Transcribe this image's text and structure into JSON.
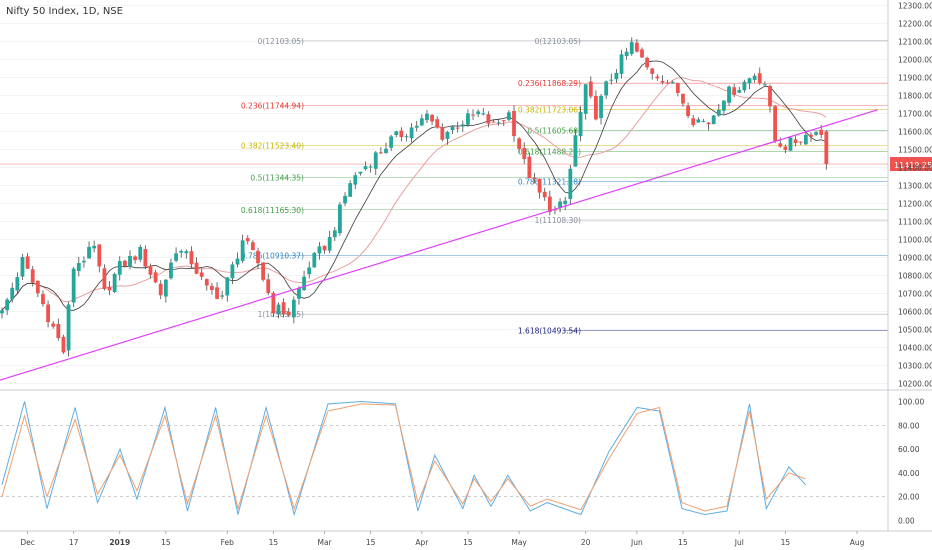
{
  "header": {
    "symbol": "Nifty 50 Index, 1D, NSE"
  },
  "chart_data": [
    {
      "type": "candlestick",
      "title": "Nifty 50 Index, 1D, NSE",
      "ylim": [
        10170,
        12330
      ],
      "y_ticks": [
        10200,
        10300,
        10400,
        10500,
        10600,
        10700,
        10800,
        10900,
        11000,
        11100,
        11200,
        11300,
        11400,
        11500,
        11600,
        11700,
        11800,
        11900,
        12000,
        12100,
        12200,
        12300
      ],
      "y_tick_labels": [
        "10200.00",
        "10300.00",
        "10400.00",
        "10500.00",
        "10600.00",
        "10700.00",
        "10800.00",
        "10900.00",
        "11000.00",
        "11100.00",
        "11200.00",
        "11300.00",
        "11400.00",
        "11500.00",
        "11600.00",
        "11700.00",
        "11800.00",
        "11900.00",
        "12000.00",
        "12100.00",
        "12200.00",
        "12300.00"
      ],
      "x_ticks": [
        {
          "label": "Dec",
          "i": 5
        },
        {
          "label": "17",
          "i": 14
        },
        {
          "label": "2019",
          "i": 23
        },
        {
          "label": "15",
          "i": 32
        },
        {
          "label": "Feb",
          "i": 44
        },
        {
          "label": "15",
          "i": 53
        },
        {
          "label": "Mar",
          "i": 63
        },
        {
          "label": "15",
          "i": 72
        },
        {
          "label": "Apr",
          "i": 82
        },
        {
          "label": "15",
          "i": 91
        },
        {
          "label": "May",
          "i": 101
        },
        {
          "label": "20",
          "i": 114
        },
        {
          "label": "Jun",
          "i": 124
        },
        {
          "label": "15",
          "i": 133
        },
        {
          "label": "Jul",
          "i": 144
        },
        {
          "label": "15",
          "i": 153
        },
        {
          "label": "Aug",
          "i": 167
        }
      ],
      "last_price_label": "11419.25",
      "last_price": 11419.25,
      "price_series": {
        "anchors": [
          [
            0,
            10590
          ],
          [
            4,
            10880
          ],
          [
            8,
            10640
          ],
          [
            12,
            10380
          ],
          [
            14,
            10850
          ],
          [
            18,
            10950
          ],
          [
            20,
            10700
          ],
          [
            23,
            10850
          ],
          [
            27,
            10930
          ],
          [
            31,
            10700
          ],
          [
            34,
            10950
          ],
          [
            37,
            10880
          ],
          [
            40,
            10720
          ],
          [
            43,
            10690
          ],
          [
            47,
            11000
          ],
          [
            50,
            10870
          ],
          [
            53,
            10620
          ],
          [
            56,
            10590
          ],
          [
            60,
            10860
          ],
          [
            64,
            11000
          ],
          [
            68,
            11320
          ],
          [
            72,
            11440
          ],
          [
            76,
            11550
          ],
          [
            80,
            11620
          ],
          [
            83,
            11680
          ],
          [
            86,
            11580
          ],
          [
            89,
            11640
          ],
          [
            93,
            11700
          ],
          [
            96,
            11630
          ],
          [
            99,
            11700
          ],
          [
            102,
            11420
          ],
          [
            105,
            11250
          ],
          [
            108,
            11150
          ],
          [
            110,
            11210
          ],
          [
            112,
            11570
          ],
          [
            114,
            11830
          ],
          [
            116,
            11700
          ],
          [
            118,
            11850
          ],
          [
            120,
            11950
          ],
          [
            123,
            12080
          ],
          [
            126,
            11950
          ],
          [
            129,
            11900
          ],
          [
            132,
            11820
          ],
          [
            135,
            11670
          ],
          [
            138,
            11650
          ],
          [
            141,
            11800
          ],
          [
            144,
            11850
          ],
          [
            147,
            11920
          ],
          [
            149,
            11870
          ],
          [
            151,
            11550
          ],
          [
            153,
            11520
          ],
          [
            156,
            11560
          ],
          [
            158,
            11600
          ],
          [
            160,
            11590
          ],
          [
            161,
            11419
          ]
        ]
      },
      "fib_left": [
        {
          "label": "0(12103.05)",
          "value": 12103.05,
          "color": "#8a8f99"
        },
        {
          "label": "0.236(11744.94)",
          "value": 11744.94,
          "color": "#e53935"
        },
        {
          "label": "0.382(11523.40)",
          "value": 11523.4,
          "color": "#c7b500"
        },
        {
          "label": "0.5(11344.35)",
          "value": 11344.35,
          "color": "#43a047"
        },
        {
          "label": "0.618(11165.30)",
          "value": 11165.3,
          "color": "#43a047"
        },
        {
          "label": "0.786(10910.37)",
          "value": 10910.37,
          "color": "#2e86c1"
        },
        {
          "label": "1(10585.65)",
          "value": 10585.65,
          "color": "#8a8f99"
        }
      ],
      "fib_right": [
        {
          "label": "0(12103.05)",
          "value": 12103.05,
          "color": "#8a8f99"
        },
        {
          "label": "0.236(11868.29)",
          "value": 11868.29,
          "color": "#e53935"
        },
        {
          "label": "0.382(11723.06)",
          "value": 11723.06,
          "color": "#c7b500"
        },
        {
          "label": "0.5(11605.68)",
          "value": 11605.68,
          "color": "#43a047"
        },
        {
          "label": "0.618(11488.29)",
          "value": 11488.29,
          "color": "#43a047"
        },
        {
          "label": "0.786(11321.18)",
          "value": 11321.18,
          "color": "#2e86c1"
        },
        {
          "label": "1(11108.30)",
          "value": 11108.3,
          "color": "#8a8f99"
        },
        {
          "label": "1.618(10493.54)",
          "value": 10493.54,
          "color": "#1a237e"
        }
      ],
      "trendline": {
        "from": [
          -6,
          10170
        ],
        "to": [
          171,
          11720
        ],
        "color": "#e040fb"
      },
      "colors": {
        "up": "#26a69a",
        "down": "#ef5350",
        "wick": "#555555",
        "ma_fast": "#3a3a3a",
        "ma_slow": "#e8a0a0"
      }
    },
    {
      "type": "line",
      "title": "",
      "ylim": [
        -8,
        108
      ],
      "y_ticks": [
        0,
        20,
        40,
        60,
        80,
        100
      ],
      "y_tick_labels": [
        "0.00",
        "20.00",
        "40.00",
        "60.00",
        "80.00",
        "100.00"
      ],
      "bands": [
        20,
        80
      ],
      "series": [
        {
          "color": "#5dade2",
          "anchors": [
            [
              0,
              30
            ],
            [
              4,
              100
            ],
            [
              8,
              10
            ],
            [
              13,
              95
            ],
            [
              17,
              15
            ],
            [
              21,
              60
            ],
            [
              24,
              18
            ],
            [
              29,
              95
            ],
            [
              33,
              8
            ],
            [
              38,
              95
            ],
            [
              42,
              5
            ],
            [
              47,
              95
            ],
            [
              52,
              5
            ],
            [
              58,
              98
            ],
            [
              64,
              100
            ],
            [
              70,
              98
            ],
            [
              74,
              8
            ],
            [
              77,
              55
            ],
            [
              82,
              10
            ],
            [
              84,
              38
            ],
            [
              87,
              12
            ],
            [
              90,
              38
            ],
            [
              94,
              8
            ],
            [
              97,
              15
            ],
            [
              103,
              5
            ],
            [
              108,
              58
            ],
            [
              113,
              95
            ],
            [
              117,
              92
            ],
            [
              121,
              10
            ],
            [
              125,
              5
            ],
            [
              129,
              8
            ],
            [
              133,
              98
            ],
            [
              136,
              10
            ],
            [
              140,
              45
            ],
            [
              143,
              30
            ]
          ]
        },
        {
          "color": "#f0a070",
          "anchors": [
            [
              0,
              20
            ],
            [
              4,
              88
            ],
            [
              8,
              20
            ],
            [
              13,
              85
            ],
            [
              17,
              22
            ],
            [
              21,
              55
            ],
            [
              24,
              25
            ],
            [
              29,
              88
            ],
            [
              33,
              14
            ],
            [
              38,
              88
            ],
            [
              42,
              10
            ],
            [
              47,
              88
            ],
            [
              52,
              10
            ],
            [
              58,
              92
            ],
            [
              64,
              98
            ],
            [
              70,
              97
            ],
            [
              74,
              15
            ],
            [
              77,
              50
            ],
            [
              82,
              14
            ],
            [
              84,
              35
            ],
            [
              87,
              16
            ],
            [
              90,
              35
            ],
            [
              94,
              12
            ],
            [
              97,
              18
            ],
            [
              103,
              9
            ],
            [
              108,
              52
            ],
            [
              113,
              90
            ],
            [
              117,
              95
            ],
            [
              121,
              15
            ],
            [
              125,
              8
            ],
            [
              129,
              12
            ],
            [
              133,
              92
            ],
            [
              136,
              18
            ],
            [
              140,
              40
            ],
            [
              143,
              35
            ]
          ]
        }
      ]
    }
  ]
}
